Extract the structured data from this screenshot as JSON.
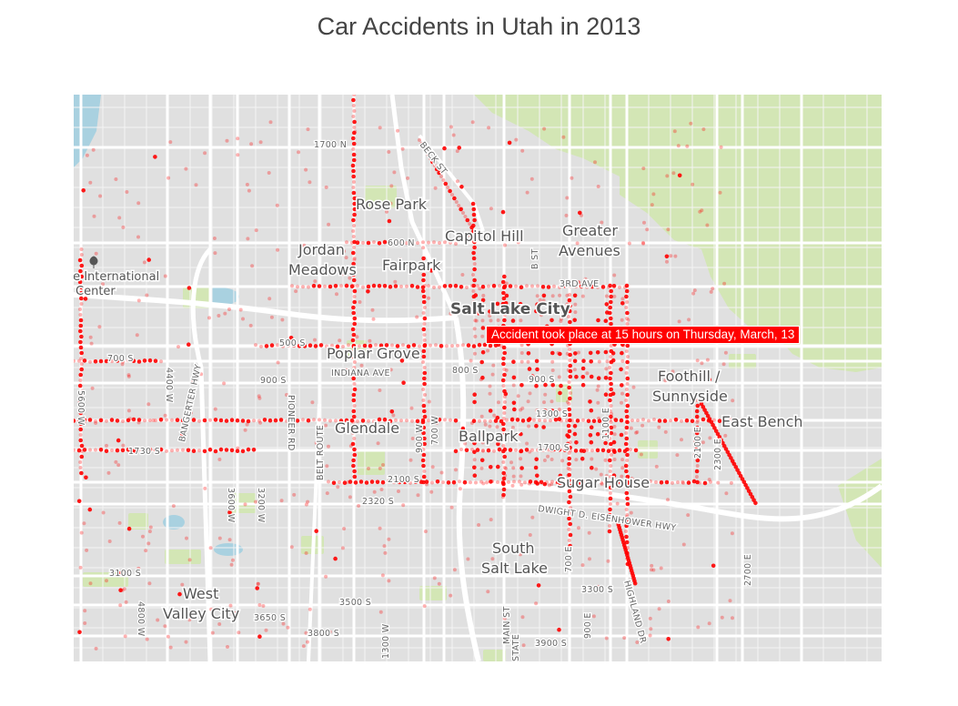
{
  "title": "Car Accidents in Utah in 2013",
  "tooltip": "Accident took place at 15 hours on Thursday, March, 13",
  "colors": {
    "accent": "#ff0000",
    "land": "#e0e0e0",
    "park": "#d3e6b5",
    "water": "#a9d1e0",
    "road": "#ffffff"
  },
  "map_labels": {
    "places": [
      "Rose Park",
      "Capitol Hill",
      "Greater",
      "Avenues",
      "Jordan",
      "Meadows",
      "Fairpark",
      "Salt Lake City",
      "Poplar Grove",
      "Foothill /",
      "Sunnyside",
      "East Bench",
      "Glendale",
      "Ballpark",
      "Sugar House",
      "South",
      "Salt Lake",
      "West",
      "Valley City",
      "te International",
      "Center"
    ],
    "streets": [
      "1700 N",
      "BECK ST",
      "600 N",
      "B ST",
      "3RD AVE",
      "500 S",
      "700 S",
      "900 S",
      "INDIANA AVE",
      "800 S",
      "900 S",
      "1300 S",
      "1700 S",
      "1730 S",
      "2100 S",
      "2320 S",
      "DWIGHT D. EISENHOWER HWY",
      "3100 S",
      "3300 S",
      "3500 S",
      "3650 S",
      "3800 S",
      "3900 S",
      "4400 W",
      "5600 W",
      "BANGERTER HWY",
      "PIONEER RD",
      "BELT ROUTE",
      "3600 W",
      "3200 W",
      "4800 W",
      "700 W",
      "900 W",
      "MAIN ST",
      "700 E",
      "900 E",
      "1100 E",
      "2100 E",
      "2300 E",
      "2700 E",
      "HIGHLAND DR",
      "1300 W",
      "STATE"
    ]
  }
}
